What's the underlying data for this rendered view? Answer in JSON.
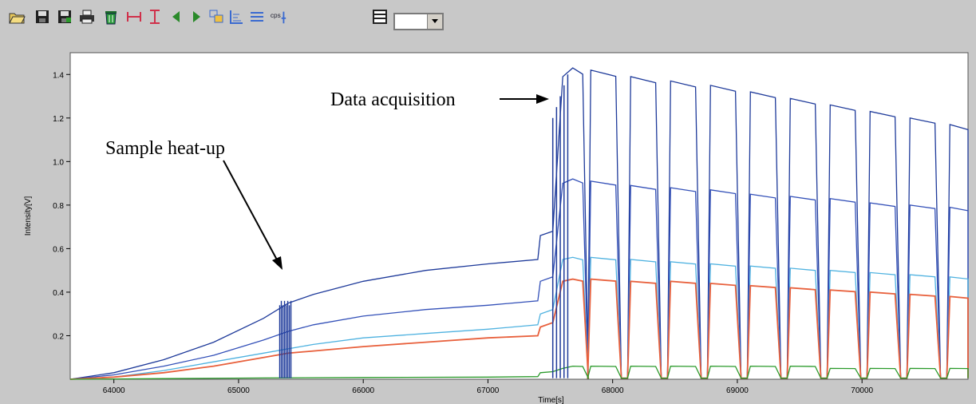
{
  "toolbar": {
    "icons": [
      {
        "name": "open-folder-icon"
      },
      {
        "name": "save-icon"
      },
      {
        "name": "save-as-icon"
      },
      {
        "name": "print-icon"
      },
      {
        "name": "delete-icon"
      },
      {
        "name": "horizontal-range-icon"
      },
      {
        "name": "vertical-range-icon"
      },
      {
        "name": "arrow-left-icon"
      },
      {
        "name": "arrow-right-icon"
      },
      {
        "name": "layers-icon"
      },
      {
        "name": "axis-icon"
      },
      {
        "name": "lines-icon"
      },
      {
        "name": "cps-icon",
        "label": "cps"
      },
      {
        "name": "table-icon"
      }
    ],
    "combo_value": ""
  },
  "chart_data": {
    "type": "line",
    "title": "",
    "xlabel": "Time[s]",
    "ylabel": "Intensity[V]",
    "xlim": [
      63650,
      70850
    ],
    "ylim": [
      0,
      1.5
    ],
    "xticks": [
      64000,
      65000,
      66000,
      67000,
      68000,
      69000,
      70000
    ],
    "yticks": [
      0.2,
      0.4,
      0.6,
      0.8,
      1.0,
      1.2,
      1.4
    ],
    "grid": false,
    "heatup_spike_x": [
      65330,
      65420
    ],
    "acquisition_start_x": 67520,
    "cycle_start_x": [
      67800,
      68120,
      68440,
      68760,
      69080,
      69400,
      69720,
      70040,
      70360,
      70680
    ],
    "series": [
      {
        "color": "#1e3a9a",
        "heatup": [
          [
            63650,
            0
          ],
          [
            64000,
            0.03
          ],
          [
            64400,
            0.09
          ],
          [
            64800,
            0.17
          ],
          [
            65200,
            0.28
          ],
          [
            65400,
            0.35
          ],
          [
            65600,
            0.39
          ],
          [
            66000,
            0.45
          ],
          [
            66500,
            0.5
          ],
          [
            67000,
            0.53
          ],
          [
            67400,
            0.55
          ],
          [
            67420,
            0.66
          ],
          [
            67520,
            0.68
          ],
          [
            67600,
            1.39
          ]
        ],
        "peaks": [
          1.43,
          1.42,
          1.39,
          1.37,
          1.35,
          1.32,
          1.29,
          1.26,
          1.23,
          1.2,
          1.17
        ]
      },
      {
        "color": "#3350b8",
        "heatup": [
          [
            63650,
            0
          ],
          [
            64000,
            0.02
          ],
          [
            64400,
            0.06
          ],
          [
            64800,
            0.11
          ],
          [
            65200,
            0.18
          ],
          [
            65400,
            0.22
          ],
          [
            65600,
            0.25
          ],
          [
            66000,
            0.29
          ],
          [
            66500,
            0.32
          ],
          [
            67000,
            0.34
          ],
          [
            67400,
            0.36
          ],
          [
            67420,
            0.45
          ],
          [
            67520,
            0.47
          ],
          [
            67600,
            0.9
          ]
        ],
        "peaks": [
          0.92,
          0.91,
          0.89,
          0.88,
          0.87,
          0.85,
          0.84,
          0.83,
          0.81,
          0.8,
          0.79
        ]
      },
      {
        "color": "#4fb2e0",
        "heatup": [
          [
            63650,
            0
          ],
          [
            64000,
            0.01
          ],
          [
            64400,
            0.04
          ],
          [
            64800,
            0.08
          ],
          [
            65200,
            0.12
          ],
          [
            65400,
            0.14
          ],
          [
            65600,
            0.16
          ],
          [
            66000,
            0.19
          ],
          [
            66500,
            0.21
          ],
          [
            67000,
            0.23
          ],
          [
            67400,
            0.25
          ],
          [
            67420,
            0.3
          ],
          [
            67520,
            0.32
          ],
          [
            67600,
            0.55
          ]
        ],
        "peaks": [
          0.56,
          0.56,
          0.55,
          0.54,
          0.53,
          0.52,
          0.51,
          0.5,
          0.49,
          0.48,
          0.47
        ]
      },
      {
        "color": "#e8603c",
        "heatup": [
          [
            63650,
            0
          ],
          [
            64000,
            0.01
          ],
          [
            64400,
            0.03
          ],
          [
            64800,
            0.06
          ],
          [
            65200,
            0.1
          ],
          [
            65400,
            0.12
          ],
          [
            65600,
            0.13
          ],
          [
            66000,
            0.15
          ],
          [
            66500,
            0.17
          ],
          [
            67000,
            0.19
          ],
          [
            67400,
            0.2
          ],
          [
            67420,
            0.24
          ],
          [
            67520,
            0.26
          ],
          [
            67600,
            0.45
          ]
        ],
        "peaks": [
          0.46,
          0.46,
          0.45,
          0.45,
          0.44,
          0.43,
          0.42,
          0.41,
          0.4,
          0.39,
          0.38
        ]
      },
      {
        "color": "#2a9a2a",
        "heatup": [
          [
            63650,
            0
          ],
          [
            64400,
            0.003
          ],
          [
            65200,
            0.006
          ],
          [
            66000,
            0.008
          ],
          [
            67000,
            0.01
          ],
          [
            67400,
            0.012
          ],
          [
            67420,
            0.03
          ],
          [
            67520,
            0.035
          ],
          [
            67600,
            0.05
          ]
        ],
        "peaks": [
          0.06,
          0.06,
          0.06,
          0.06,
          0.06,
          0.06,
          0.06,
          0.05,
          0.05,
          0.05,
          0.05
        ]
      }
    ],
    "annotations": [
      {
        "text": "Sample heat-up"
      },
      {
        "text": "Data  acquisition"
      }
    ]
  }
}
